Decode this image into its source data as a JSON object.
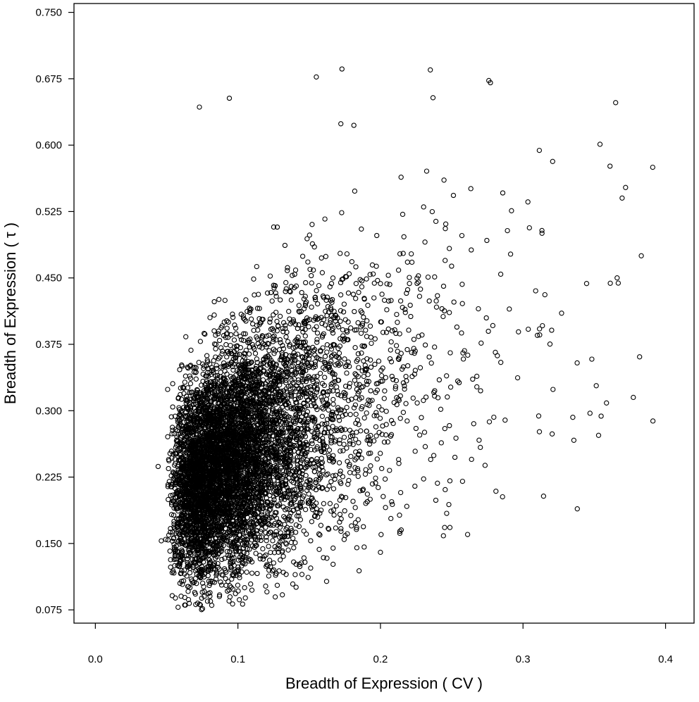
{
  "chart_data": {
    "type": "scatter",
    "title": "",
    "xlabel": "Breadth of Expression ( CV )",
    "ylabel": "Breadth of Expression ( τ )",
    "xlim": [
      -0.015,
      0.42
    ],
    "ylim": [
      0.06,
      0.76
    ],
    "xticks": [
      "0.0",
      "0.1",
      "0.2",
      "0.3",
      "0.4"
    ],
    "yticks": [
      "0.075",
      "0.150",
      "0.225",
      "0.300",
      "0.375",
      "0.450",
      "0.525",
      "0.600",
      "0.675",
      "0.750"
    ],
    "grid": false,
    "legend": "none",
    "marker": "open-circle",
    "marker_color": "#000000",
    "sample_points": [
      {
        "x": 0.044,
        "y": 0.237
      },
      {
        "x": 0.058,
        "y": 0.078
      },
      {
        "x": 0.073,
        "y": 0.643
      },
      {
        "x": 0.094,
        "y": 0.653
      },
      {
        "x": 0.155,
        "y": 0.677
      },
      {
        "x": 0.173,
        "y": 0.686
      },
      {
        "x": 0.235,
        "y": 0.685
      },
      {
        "x": 0.276,
        "y": 0.673
      },
      {
        "x": 0.354,
        "y": 0.601
      },
      {
        "x": 0.365,
        "y": 0.648
      },
      {
        "x": 0.391,
        "y": 0.575
      },
      {
        "x": 0.383,
        "y": 0.475
      },
      {
        "x": 0.366,
        "y": 0.45
      },
      {
        "x": 0.338,
        "y": 0.354
      },
      {
        "x": 0.311,
        "y": 0.294
      },
      {
        "x": 0.281,
        "y": 0.209
      },
      {
        "x": 0.245,
        "y": 0.168
      },
      {
        "x": 0.2,
        "y": 0.14
      },
      {
        "x": 0.16,
        "y": 0.134
      },
      {
        "x": 0.1,
        "y": 0.12
      },
      {
        "x": 0.075,
        "y": 0.095
      }
    ]
  }
}
